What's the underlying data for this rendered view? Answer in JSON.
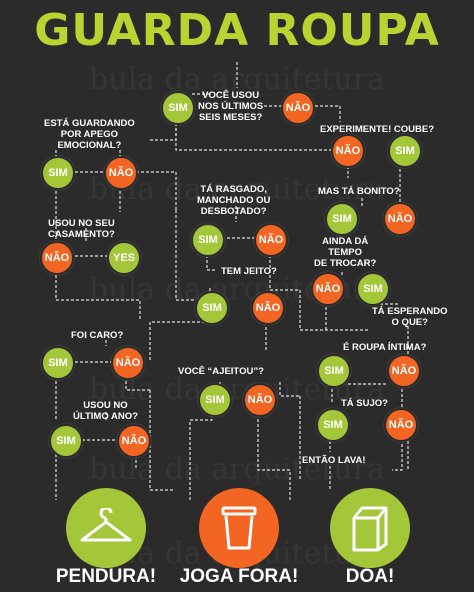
{
  "title": "GUARDA ROUPA",
  "watermark": "bula da arquitetura",
  "colors": {
    "background": "#2b2b2b",
    "green": "#a4c639",
    "orange": "#f26522",
    "title": "#b9d431"
  },
  "labels": {
    "yes": "SIM",
    "no": "NÃO",
    "yes_alt": "YES"
  },
  "questions": {
    "q1": [
      "VOCÊ USOU",
      "NOS ÚLTIMOS",
      "SEIS MESES?"
    ],
    "q2": [
      "ESTÁ GUARDANDO",
      "POR APEGO",
      "EMOCIONAL?"
    ],
    "q3": [
      "EXPERIMENTE! COUBE?"
    ],
    "q4": [
      "MAS TÁ BONITO?"
    ],
    "q5": [
      "TÁ RASGADO,",
      "MANCHADO OU",
      "DESBOTADO?"
    ],
    "q6": [
      "USOU NO SEU",
      "CASAMENTO?"
    ],
    "q7": [
      "AINDA DÁ",
      "TEMPO",
      "DE TROCAR?"
    ],
    "q8": [
      "TEM JEITO?"
    ],
    "q9": [
      "TÁ ESPERANDO",
      "O QUE?"
    ],
    "q10": [
      "FOI CARO?"
    ],
    "q11": [
      "É ROUPA ÍNTIMA?"
    ],
    "q12": [
      "VOCÊ “AJEITOU”?"
    ],
    "q13": [
      "USOU NO",
      "ÚLTIMO ANO?"
    ],
    "q14": [
      "TÁ SUJO?"
    ],
    "q15": [
      "ENTÃO LAVA!"
    ]
  },
  "outcomes": {
    "keep": {
      "label": "PENDURA!",
      "icon": "hanger-icon",
      "color": "#a4c639"
    },
    "trash": {
      "label": "JOGA FORA!",
      "icon": "trash-bin-icon",
      "color": "#f26522"
    },
    "donate": {
      "label": "DOA!",
      "icon": "donation-box-icon",
      "color": "#a4c639"
    }
  }
}
